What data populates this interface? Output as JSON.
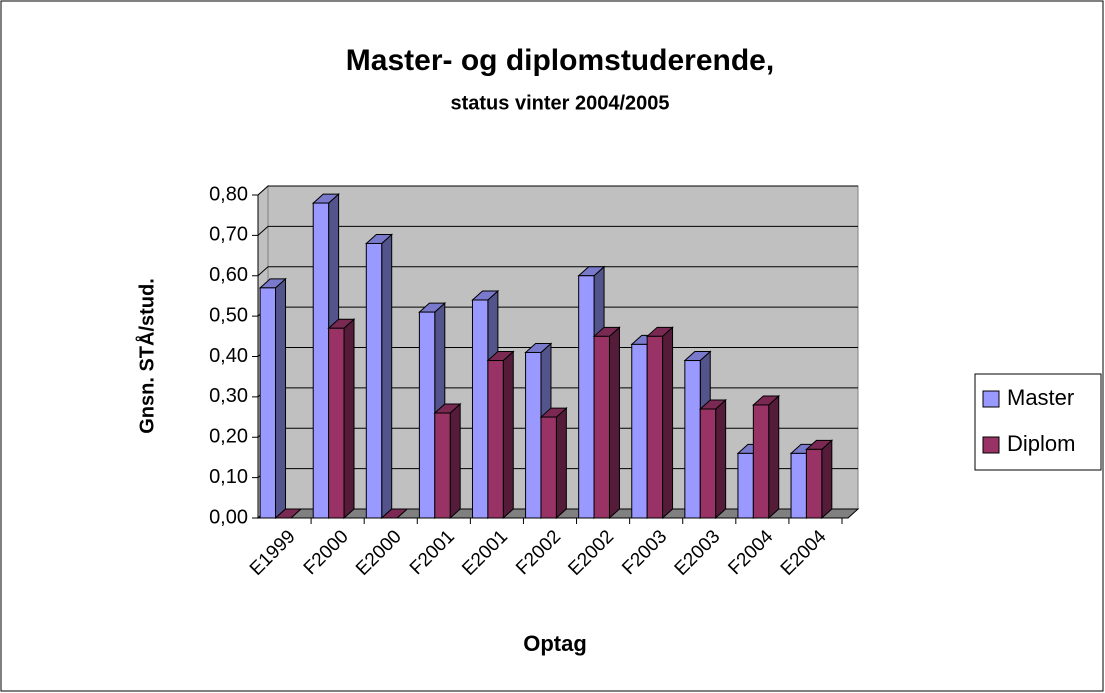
{
  "chart_data": {
    "type": "bar3d",
    "title": "Master- og diplomstuderende,",
    "subtitle": "status vinter 2004/2005",
    "x_label": "Optag",
    "y_label": "Gnsn. STÅ/stud.",
    "categories": [
      "E1999",
      "F2000",
      "E2000",
      "F2001",
      "E2001",
      "F2002",
      "E2002",
      "F2003",
      "E2003",
      "F2004",
      "E2004"
    ],
    "series": [
      {
        "name": "Master",
        "color": "#9999ff",
        "values": [
          0.57,
          0.78,
          0.68,
          0.51,
          0.54,
          0.41,
          0.6,
          0.43,
          0.39,
          0.16,
          0.16
        ]
      },
      {
        "name": "Diplom",
        "color": "#993366",
        "values": [
          0,
          0.47,
          0,
          0.26,
          0.39,
          0.25,
          0.45,
          0.45,
          0.27,
          0.28,
          0.17
        ]
      }
    ],
    "ylim": [
      0,
      0.8
    ],
    "yticks": [
      {
        "value": 0,
        "label": "0,00"
      },
      {
        "value": 0.1,
        "label": "0,10"
      },
      {
        "value": 0.2,
        "label": "0,20"
      },
      {
        "value": 0.3,
        "label": "0,30"
      },
      {
        "value": 0.4,
        "label": "0,40"
      },
      {
        "value": 0.5,
        "label": "0,50"
      },
      {
        "value": 0.6,
        "label": "0,60"
      },
      {
        "value": 0.7,
        "label": "0,70"
      },
      {
        "value": 0.8,
        "label": "0,80"
      }
    ],
    "grid": true,
    "legend": "right"
  }
}
